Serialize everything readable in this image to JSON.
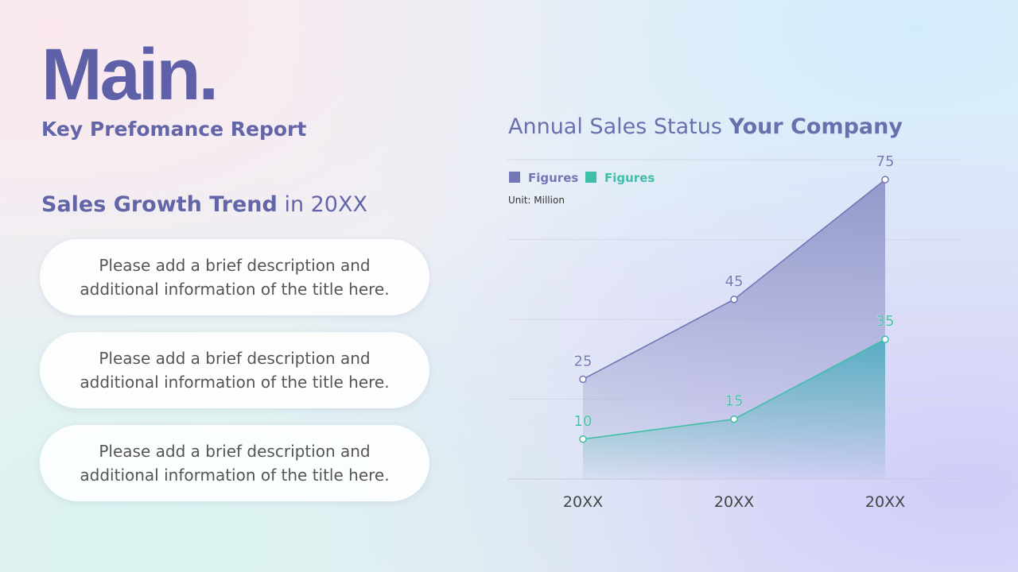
{
  "header": {
    "title": "Main.",
    "subtitle": "Key Prefomance Report"
  },
  "section": {
    "title_bold": "Sales Growth Trend",
    "title_rest": "in 20XX"
  },
  "cards": [
    {
      "lines": [
        "Please add a brief description and",
        "additional information of the title here."
      ]
    },
    {
      "lines": [
        "Please add a brief description and",
        "additional information of the title here."
      ]
    },
    {
      "lines": [
        "Please add a brief description and",
        "additional information of the title here."
      ]
    }
  ],
  "chart_data": {
    "type": "area",
    "title": "Annual Sales Status",
    "title_bold": "Your Company",
    "unit": "Unit: Million",
    "categories": [
      "20XX",
      "20XX",
      "20XX"
    ],
    "series": [
      {
        "name": "Figures",
        "color": "#7377b6",
        "values": [
          25,
          45,
          75
        ]
      },
      {
        "name": "Figures",
        "color": "#3fbfa6",
        "values": [
          10,
          15,
          35
        ]
      }
    ],
    "ylim": [
      0,
      80
    ],
    "yticks": [
      0,
      20,
      40,
      60,
      80
    ],
    "grid": true
  }
}
